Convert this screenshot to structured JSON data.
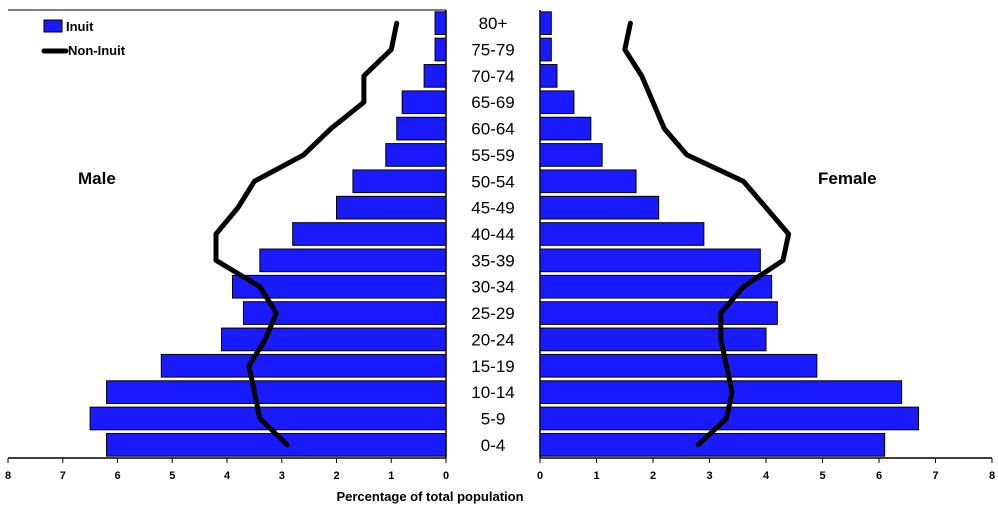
{
  "chart_data": {
    "type": "bar",
    "subtype": "population-pyramid",
    "xlabel": "Percentage of total population",
    "categories": [
      "0-4",
      "5-9",
      "10-14",
      "15-19",
      "20-24",
      "25-29",
      "30-34",
      "35-39",
      "40-44",
      "45-49",
      "50-54",
      "55-59",
      "60-64",
      "65-69",
      "70-74",
      "75-79",
      "80+"
    ],
    "side_labels": {
      "left": "Male",
      "right": "Female"
    },
    "x_ticks": [
      "0",
      "1",
      "2",
      "3",
      "4",
      "5",
      "6",
      "7",
      "8"
    ],
    "xlim": [
      0,
      8
    ],
    "legend": {
      "position": "top-left",
      "bar_label": "Inuit",
      "line_label": "Non-Inuit"
    },
    "colors": {
      "bar": "#1a1aff",
      "line": "#000000"
    },
    "series": [
      {
        "name": "Inuit",
        "side": "male",
        "style": "bar",
        "values": [
          6.2,
          6.5,
          6.2,
          5.2,
          4.1,
          3.7,
          3.9,
          3.4,
          2.8,
          2.0,
          1.7,
          1.1,
          0.9,
          0.8,
          0.4,
          0.2,
          0.2
        ]
      },
      {
        "name": "Non-Inuit",
        "side": "male",
        "style": "line",
        "values": [
          2.9,
          3.4,
          3.5,
          3.6,
          3.3,
          3.1,
          3.4,
          4.2,
          4.2,
          3.8,
          3.5,
          2.6,
          2.1,
          1.5,
          1.5,
          1.0,
          0.9
        ]
      },
      {
        "name": "Inuit",
        "side": "female",
        "style": "bar",
        "values": [
          6.1,
          6.7,
          6.4,
          4.9,
          4.0,
          4.2,
          4.1,
          3.9,
          2.9,
          2.1,
          1.7,
          1.1,
          0.9,
          0.6,
          0.3,
          0.2,
          0.2
        ]
      },
      {
        "name": "Non-Inuit",
        "side": "female",
        "style": "line",
        "values": [
          2.8,
          3.3,
          3.4,
          3.3,
          3.2,
          3.2,
          3.6,
          4.3,
          4.4,
          4.0,
          3.6,
          2.6,
          2.2,
          2.0,
          1.8,
          1.5,
          1.6
        ]
      }
    ]
  }
}
